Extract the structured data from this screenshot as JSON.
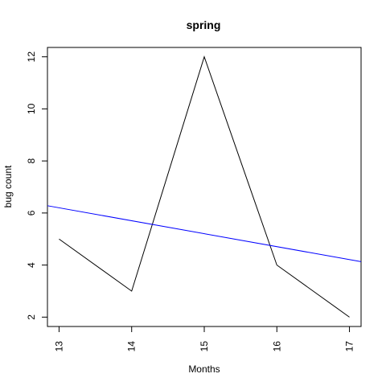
{
  "chart_data": {
    "type": "line",
    "title": "spring",
    "xlabel": "Months",
    "ylabel": "bug count",
    "x": [
      13,
      14,
      15,
      16,
      17
    ],
    "series": [
      {
        "values": [
          5,
          3,
          12,
          4,
          2
        ],
        "color": "#000000"
      }
    ],
    "trend_line": {
      "x": [
        12.84,
        17.16
      ],
      "y": [
        6.28,
        4.13
      ],
      "color": "#0000ff"
    },
    "xlim": [
      12.84,
      17.16
    ],
    "ylim": [
      1.64,
      12.36
    ],
    "xticks": [
      13,
      14,
      15,
      16,
      17
    ],
    "yticks": [
      2,
      4,
      6,
      8,
      10,
      12
    ],
    "grid": false,
    "legend": "none"
  }
}
